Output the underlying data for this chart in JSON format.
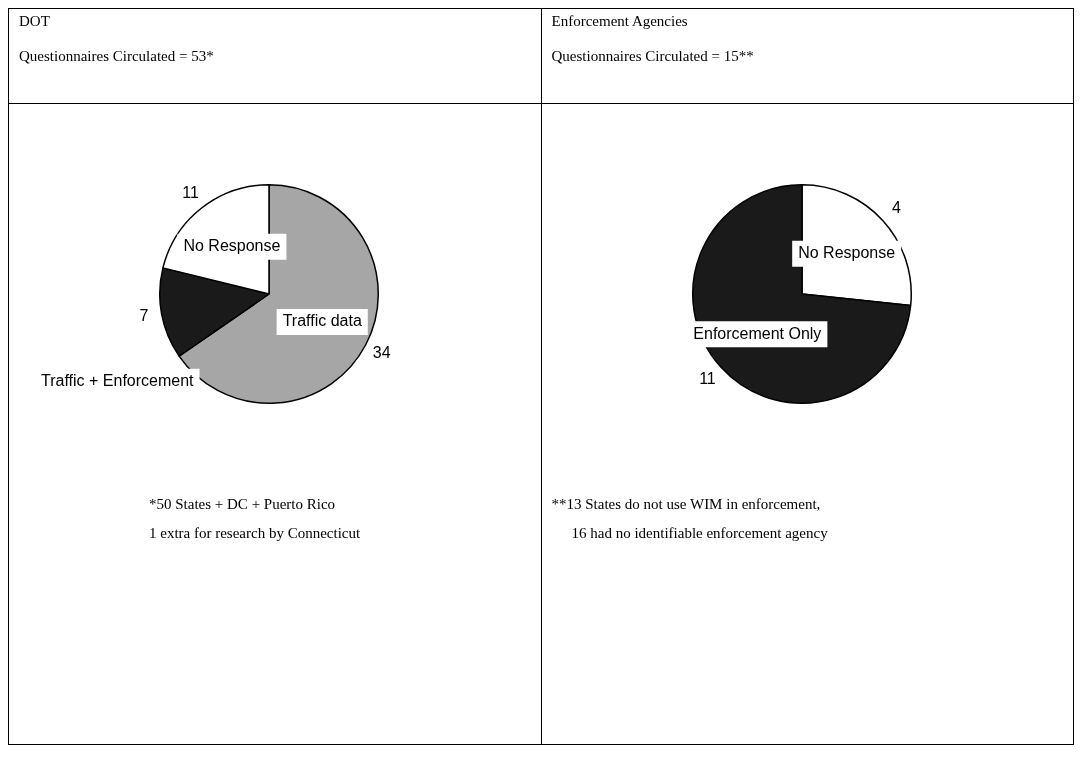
{
  "chart_data": [
    {
      "type": "pie",
      "title": "DOT",
      "subtitle": "Questionnaires Circulated = 53*",
      "categories": [
        "Traffic data",
        "Traffic + Enforcement",
        "No Response"
      ],
      "values": [
        34,
        7,
        11
      ],
      "colors": [
        "#a6a6a6",
        "#1a1a1a",
        "#ffffff"
      ],
      "data_labels": true,
      "annotations": [
        "*50 States + DC + Puerto Rico",
        "1 extra for research by Connecticut"
      ]
    },
    {
      "type": "pie",
      "title": "Enforcement Agencies",
      "subtitle": "Questionnaires Circulated = 15**",
      "categories": [
        "No Response",
        "Enforcement Only"
      ],
      "values": [
        4,
        11
      ],
      "colors": [
        "#ffffff",
        "#1a1a1a"
      ],
      "data_labels": true,
      "annotations": [
        "**13 States do not use WIM in enforcement,",
        "16 had no identifiable enforcement agency"
      ]
    }
  ]
}
